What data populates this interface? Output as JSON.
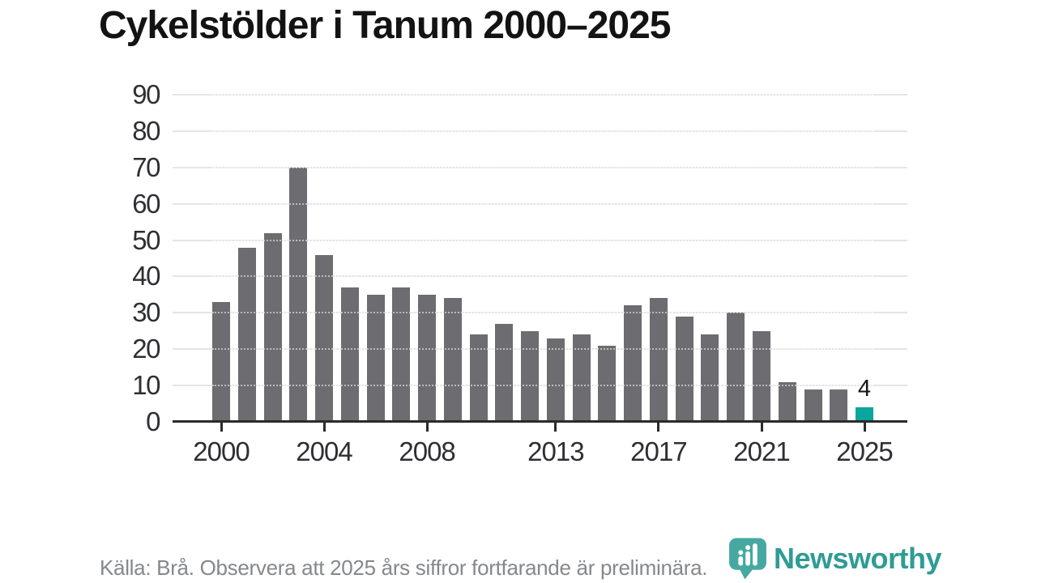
{
  "title": "Cykelstölder i Tanum 2000–2025",
  "source_note": "Källa: Brå. Observera att 2025 års siffror fortfarande är preliminära.",
  "branding": {
    "logo_text": "Newsworthy"
  },
  "colors": {
    "bar_default": "#6c6c71",
    "bar_highlight": "#0aa59d",
    "axis": "#2b2b2b",
    "gridline": "#e5e5e7",
    "label_text": "#2e2f33",
    "source_text": "#85888b",
    "brand_teal": "#2e9c94"
  },
  "chart_data": {
    "type": "bar",
    "title": "Cykelstölder i Tanum 2000–2025",
    "x": [
      2000,
      2001,
      2002,
      2003,
      2004,
      2005,
      2006,
      2007,
      2008,
      2009,
      2010,
      2011,
      2012,
      2013,
      2014,
      2015,
      2016,
      2017,
      2018,
      2019,
      2020,
      2021,
      2022,
      2023,
      2024,
      2025
    ],
    "values": [
      33,
      48,
      52,
      70,
      46,
      37,
      35,
      37,
      35,
      34,
      24,
      27,
      25,
      23,
      24,
      21,
      32,
      34,
      29,
      24,
      30,
      25,
      11,
      9,
      9,
      4
    ],
    "highlight_index": 25,
    "highlight_label": "4",
    "x_tick_years": [
      2000,
      2004,
      2008,
      2013,
      2017,
      2021,
      2025
    ],
    "x_tick_labels": [
      "2000",
      "2004",
      "2008",
      "2013",
      "2017",
      "2021",
      "2025"
    ],
    "y_ticks": [
      0,
      10,
      20,
      30,
      40,
      50,
      60,
      70,
      80,
      90
    ],
    "ylim": [
      0,
      90
    ],
    "grid": "horizontal",
    "legend": "none"
  }
}
